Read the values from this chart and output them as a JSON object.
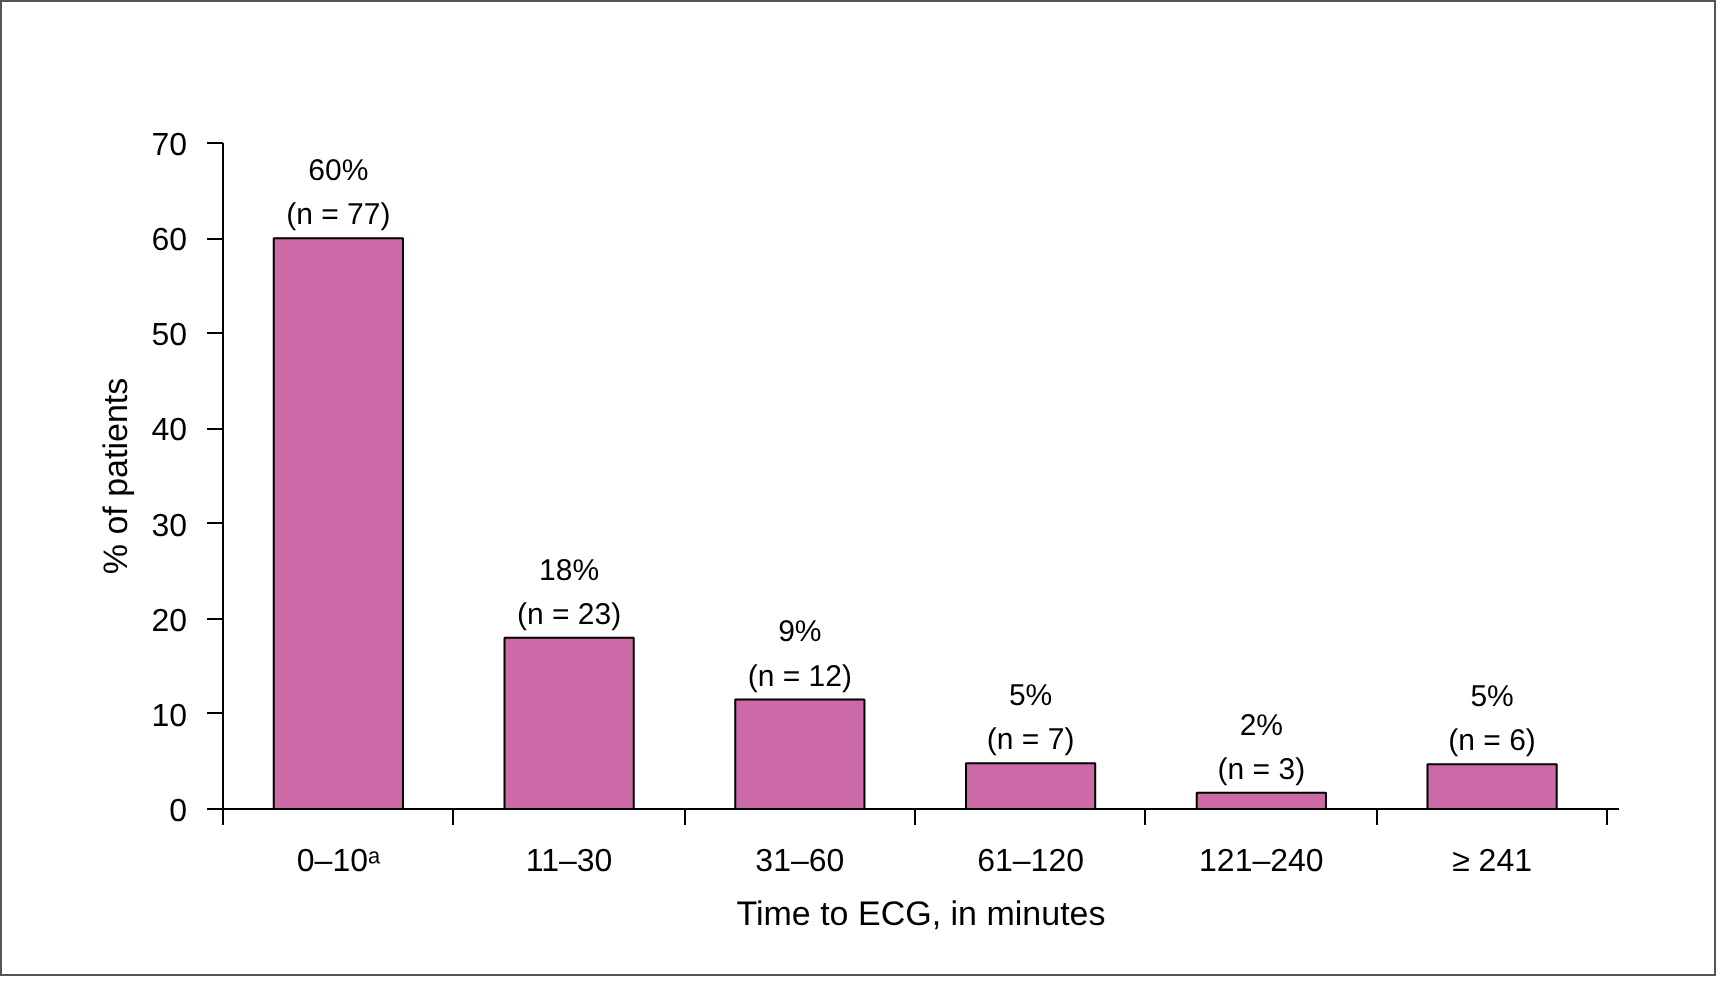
{
  "chart_data": {
    "type": "bar",
    "xlabel": "Time to ECG, in minutes",
    "ylabel": "% of patients",
    "categories": [
      "0–10ᵃ",
      "11–30",
      "31–60",
      "61–120",
      "121–240",
      "≥ 241"
    ],
    "values": [
      60,
      18,
      11.5,
      4.8,
      1.7,
      4.7
    ],
    "value_labels": [
      "60%\n(n = 77)",
      "18%\n(n = 23)",
      "9%\n(n = 12)",
      "5%\n(n = 7)",
      "2%\n(n = 3)",
      "5%\n(n = 6)"
    ],
    "color": "#cc6aa8",
    "ylim": [
      0,
      70
    ],
    "yticks": [
      0,
      10,
      20,
      30,
      40,
      50,
      60,
      70
    ],
    "grid": false
  }
}
